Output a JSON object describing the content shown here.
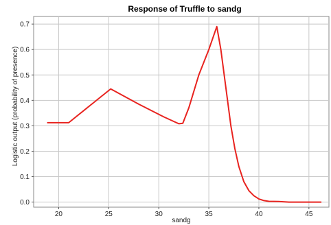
{
  "chart_data": {
    "type": "line",
    "title": "Response of Truffle to sandg",
    "xlabel": "sandg",
    "ylabel": "Logistic output (probability of presence)",
    "xlim": [
      17.5,
      47
    ],
    "ylim": [
      -0.02,
      0.73
    ],
    "xticks": [
      20,
      25,
      30,
      35,
      40,
      45
    ],
    "yticks": [
      0.0,
      0.1,
      0.2,
      0.3,
      0.4,
      0.5,
      0.6,
      0.7
    ],
    "xtick_labels": [
      "20",
      "25",
      "30",
      "35",
      "40",
      "45"
    ],
    "ytick_labels": [
      "0.0",
      "0.1",
      "0.2",
      "0.3",
      "0.4",
      "0.5",
      "0.6",
      "0.7"
    ],
    "grid": true,
    "series": [
      {
        "color": "#e8231f",
        "x": [
          18.9,
          21.0,
          25.2,
          28.0,
          30.5,
          32.0,
          32.4,
          33.0,
          34.0,
          35.0,
          35.8,
          36.2,
          36.7,
          37.2,
          37.6,
          38.0,
          38.5,
          39.0,
          39.5,
          40.0,
          40.5,
          41.0,
          42.0,
          43.0,
          44.0,
          45.0,
          46.2
        ],
        "y": [
          0.312,
          0.312,
          0.445,
          0.385,
          0.335,
          0.308,
          0.31,
          0.37,
          0.5,
          0.6,
          0.69,
          0.6,
          0.45,
          0.3,
          0.21,
          0.14,
          0.08,
          0.045,
          0.025,
          0.012,
          0.006,
          0.003,
          0.002,
          0.0,
          0.0,
          0.0,
          0.0
        ]
      }
    ]
  }
}
